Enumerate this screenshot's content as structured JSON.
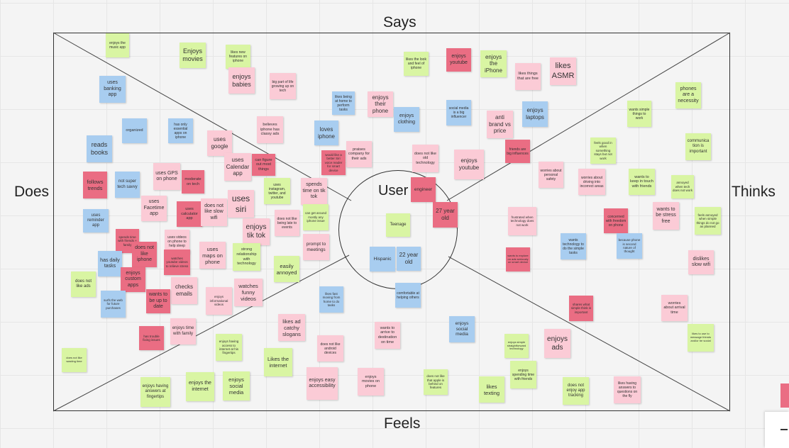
{
  "labels": {
    "says": "Says",
    "does": "Does",
    "thinks": "Thinks",
    "feels": "Feels",
    "user": "User"
  },
  "notes": [
    {
      "t": "enjoys the music app",
      "c": "green"
    },
    {
      "t": "Enjoys movies",
      "c": "green"
    },
    {
      "t": "likes new features on iphone",
      "c": "green"
    },
    {
      "t": "enjoys babies",
      "c": "pink"
    },
    {
      "t": "big part of life growing up on tech",
      "c": "pink"
    },
    {
      "t": "uses banking app",
      "c": "blue"
    },
    {
      "t": "likes being at home to perform tasks",
      "c": "blue"
    },
    {
      "t": "enjoys their phone",
      "c": "pink"
    },
    {
      "t": "likes the look and feel of iphone",
      "c": "green"
    },
    {
      "t": "enjoys youtube",
      "c": "red"
    },
    {
      "t": "enjoys the iPhone",
      "c": "green"
    },
    {
      "t": "likes things that are free",
      "c": "pink"
    },
    {
      "t": "likes ASMR",
      "c": "pink"
    },
    {
      "t": "phones are a necessity",
      "c": "green"
    },
    {
      "t": "enjoys clothing",
      "c": "blue"
    },
    {
      "t": "social media is a big influencer",
      "c": "blue"
    },
    {
      "t": "anti brand vs price",
      "c": "pink"
    },
    {
      "t": "enjoys laptops",
      "c": "blue"
    },
    {
      "t": "wants simple things to work",
      "c": "green"
    },
    {
      "t": "organized",
      "c": "blue"
    },
    {
      "t": "has only essential apps on iphone",
      "c": "blue"
    },
    {
      "t": "believes iphone has classy ads",
      "c": "pink"
    },
    {
      "t": "loves iphone",
      "c": "blue"
    },
    {
      "t": "uses google",
      "c": "pink"
    },
    {
      "t": "reads books",
      "c": "blue"
    },
    {
      "t": "praises company for their ads",
      "c": "pink"
    },
    {
      "t": "does not like old technology",
      "c": "pink"
    },
    {
      "t": "enjoys youtube",
      "c": "pink"
    },
    {
      "t": "friends are big influences",
      "c": "red"
    },
    {
      "t": "feels good in when something stays but not work",
      "c": "green"
    },
    {
      "t": "communication is important",
      "c": "green"
    },
    {
      "t": "uses Calendar app",
      "c": "pink"
    },
    {
      "t": "can figure out most things",
      "c": "red"
    },
    {
      "t": "would like a better Siri voice reader for smart device",
      "c": "red"
    },
    {
      "t": "uses GPS on phone",
      "c": "pink"
    },
    {
      "t": "moderate on tech",
      "c": "red"
    },
    {
      "t": "follows trends",
      "c": "red"
    },
    {
      "t": "not super tech savvy",
      "c": "blue"
    },
    {
      "t": "uses instagram, twitter, and youtube",
      "c": "green"
    },
    {
      "t": "spends time on tik tok",
      "c": "pink"
    },
    {
      "t": "worries about personal safety",
      "c": "pink"
    },
    {
      "t": "worries about driving into incorrect areas",
      "c": "pink"
    },
    {
      "t": "wants to keep in touch with friends",
      "c": "green"
    },
    {
      "t": "annoyed when tech does not work",
      "c": "green"
    },
    {
      "t": "uses Facetime app",
      "c": "pink"
    },
    {
      "t": "uses calculator app",
      "c": "red"
    },
    {
      "t": "does not like slow wifi",
      "c": "pink"
    },
    {
      "t": "uses siri",
      "c": "pink"
    },
    {
      "t": "can get around mostly any iphone issue",
      "c": "green"
    },
    {
      "t": "engineer",
      "c": "red"
    },
    {
      "t": "27 year old",
      "c": "red"
    },
    {
      "t": "wants to be stress free",
      "c": "pink"
    },
    {
      "t": "feels annoyed when simple things do not go as planned",
      "c": "green"
    },
    {
      "t": "uses reminder app",
      "c": "blue"
    },
    {
      "t": "does not like being late to events",
      "c": "pink"
    },
    {
      "t": "enjoys tik tok",
      "c": "pink"
    },
    {
      "t": "Teenage",
      "c": "green"
    },
    {
      "t": "frustrated when technology does not work",
      "c": "pink"
    },
    {
      "t": "concerned with freedom on phone",
      "c": "red"
    },
    {
      "t": "spends time with friends + family",
      "c": "red"
    },
    {
      "t": "uses videos on phone to help sleep",
      "c": "pink"
    },
    {
      "t": "wants technology to do the simple tasks",
      "c": "blue"
    },
    {
      "t": "because phone is second nature of thought",
      "c": "blue"
    },
    {
      "t": "does not like iphone",
      "c": "red"
    },
    {
      "t": "watches youtube videos to relieve stress",
      "c": "red"
    },
    {
      "t": "uses maps on phone",
      "c": "pink"
    },
    {
      "t": "strong relationship with technology",
      "c": "green"
    },
    {
      "t": "prompt to meetings",
      "c": "pink"
    },
    {
      "t": "Hispanic",
      "c": "blue"
    },
    {
      "t": "22 year old",
      "c": "blue"
    },
    {
      "t": "wants to explore on ads seriously on smart device",
      "c": "red"
    },
    {
      "t": "dislikes slow wifi",
      "c": "pink"
    },
    {
      "t": "has daily tasks",
      "c": "blue"
    },
    {
      "t": "easily annoyed",
      "c": "green"
    },
    {
      "t": "enjoys custom apps",
      "c": "red"
    },
    {
      "t": "does not like ads",
      "c": "green"
    },
    {
      "t": "checks emails",
      "c": "pink"
    },
    {
      "t": "watches funny videos",
      "c": "pink"
    },
    {
      "t": "surfs the web for future purchases",
      "c": "blue"
    },
    {
      "t": "wants to be up to date",
      "c": "red"
    },
    {
      "t": "enjoys informational videos",
      "c": "pink"
    },
    {
      "t": "likes fast moving from home to do tasks",
      "c": "blue"
    },
    {
      "t": "comfortable at helping others",
      "c": "blue"
    },
    {
      "t": "shares what simple think is important",
      "c": "red"
    },
    {
      "t": "worries about arrival time",
      "c": "pink"
    },
    {
      "t": "likes ad catchy slogans",
      "c": "pink"
    },
    {
      "t": "enjoys time with family",
      "c": "pink"
    },
    {
      "t": "wants to arrive to destination on time",
      "c": "pink"
    },
    {
      "t": "enjoys social media",
      "c": "blue"
    },
    {
      "t": "likes to use to message friends and/or be social",
      "c": "green"
    },
    {
      "t": "has trouble fixing issues",
      "c": "red"
    },
    {
      "t": "enjoys having access to internet at his fingertips",
      "c": "green"
    },
    {
      "t": "does not like android devices",
      "c": "pink"
    },
    {
      "t": "enjoys simple straightforward technology",
      "c": "green"
    },
    {
      "t": "enjoys ads",
      "c": "pink"
    },
    {
      "t": "does not like wasting time",
      "c": "green"
    },
    {
      "t": "Likes the internet",
      "c": "green"
    },
    {
      "t": "enjoys spending time with friends",
      "c": "green"
    },
    {
      "t": "enjoys having answers at fingertips",
      "c": "green"
    },
    {
      "t": "enjoys the internet",
      "c": "green"
    },
    {
      "t": "enjoys social media",
      "c": "green"
    },
    {
      "t": "enjoys easy accessibility",
      "c": "pink"
    },
    {
      "t": "enjoys movies on phone",
      "c": "pink"
    },
    {
      "t": "does not like that apple is behind on features",
      "c": "green"
    },
    {
      "t": "likes texting",
      "c": "green"
    },
    {
      "t": "does not enjoy app tracking",
      "c": "green"
    },
    {
      "t": "likes having answers to questions on the fly",
      "c": "pink"
    }
  ]
}
